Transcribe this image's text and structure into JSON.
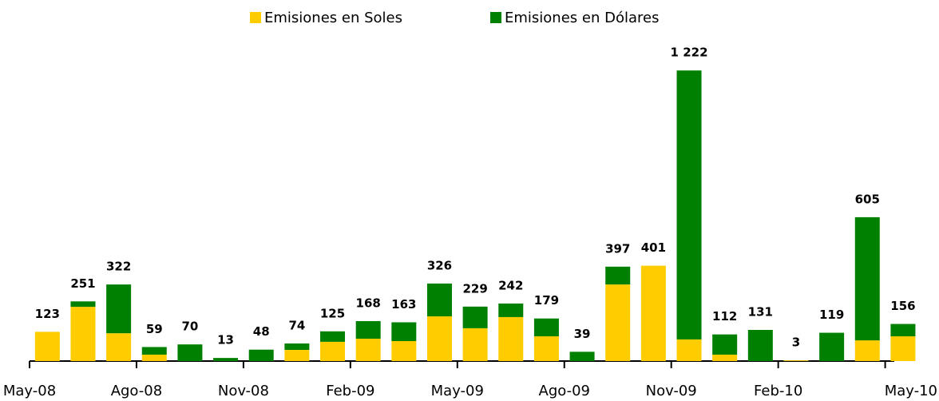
{
  "chart_data": {
    "type": "bar",
    "stacked": true,
    "categories": [
      "May-08",
      null,
      null,
      "Ago-08",
      null,
      null,
      "Nov-08",
      null,
      null,
      "Feb-09",
      null,
      null,
      "May-09",
      null,
      null,
      "Ago-09",
      null,
      null,
      "Nov-09",
      null,
      null,
      "Feb-10",
      null,
      null,
      "May-10"
    ],
    "series": [
      {
        "name": "Emisiones en Soles",
        "color": "#FFCC00",
        "values": [
          123,
          228,
          117,
          27,
          0,
          0,
          0,
          47,
          81,
          94,
          84,
          188,
          138,
          185,
          104,
          0,
          322,
          401,
          91,
          27,
          0,
          3,
          0,
          87,
          104
        ]
      },
      {
        "name": "Emisiones en Dólares",
        "color": "#008000",
        "values": [
          0,
          23,
          205,
          32,
          70,
          13,
          48,
          27,
          44,
          74,
          79,
          138,
          91,
          57,
          75,
          39,
          75,
          0,
          1131,
          85,
          131,
          0,
          119,
          518,
          52
        ]
      }
    ],
    "values": [
      123,
      251,
      322,
      59,
      70,
      13,
      48,
      74,
      125,
      168,
      163,
      326,
      229,
      242,
      179,
      39,
      397,
      401,
      1222,
      112,
      131,
      3,
      119,
      605,
      156
    ],
    "value_labels": [
      "123",
      "251",
      "322",
      "59",
      "70",
      "13",
      "48",
      "74",
      "125",
      "168",
      "163",
      "326",
      "229",
      "242",
      "179",
      "39",
      "397",
      "401",
      "1 222",
      "112",
      "131",
      "3",
      "119",
      "605",
      "156"
    ],
    "ylim": [
      0,
      1300
    ]
  }
}
